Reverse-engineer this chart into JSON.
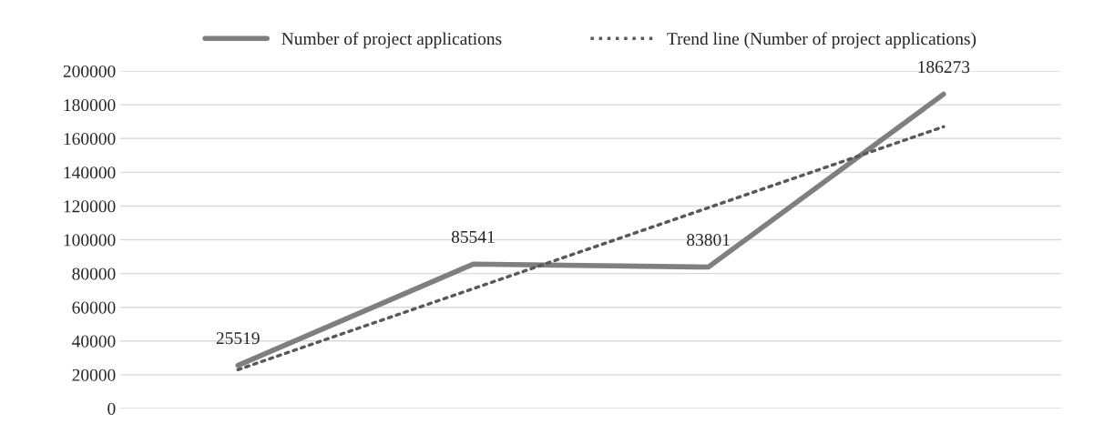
{
  "chart_data": {
    "type": "line",
    "categories": [
      null,
      null,
      null,
      null
    ],
    "series": [
      {
        "name": "Number of project applications",
        "color": "#7f7f7f",
        "values": [
          25519,
          85541,
          83801,
          186273
        ],
        "value_labels": [
          "25519",
          "85541",
          "83801",
          "186273"
        ],
        "line_style": "solid"
      },
      {
        "name": "Trend line (Number of project applications)",
        "color": "#595959",
        "values": [
          23000,
          71000,
          119000,
          167000
        ],
        "line_style": "dotted"
      }
    ],
    "ylim": [
      0,
      200000
    ],
    "yticks": [
      0,
      20000,
      40000,
      60000,
      80000,
      100000,
      120000,
      140000,
      160000,
      180000,
      200000
    ],
    "grid": "y",
    "legend": "top",
    "marker": "none"
  }
}
